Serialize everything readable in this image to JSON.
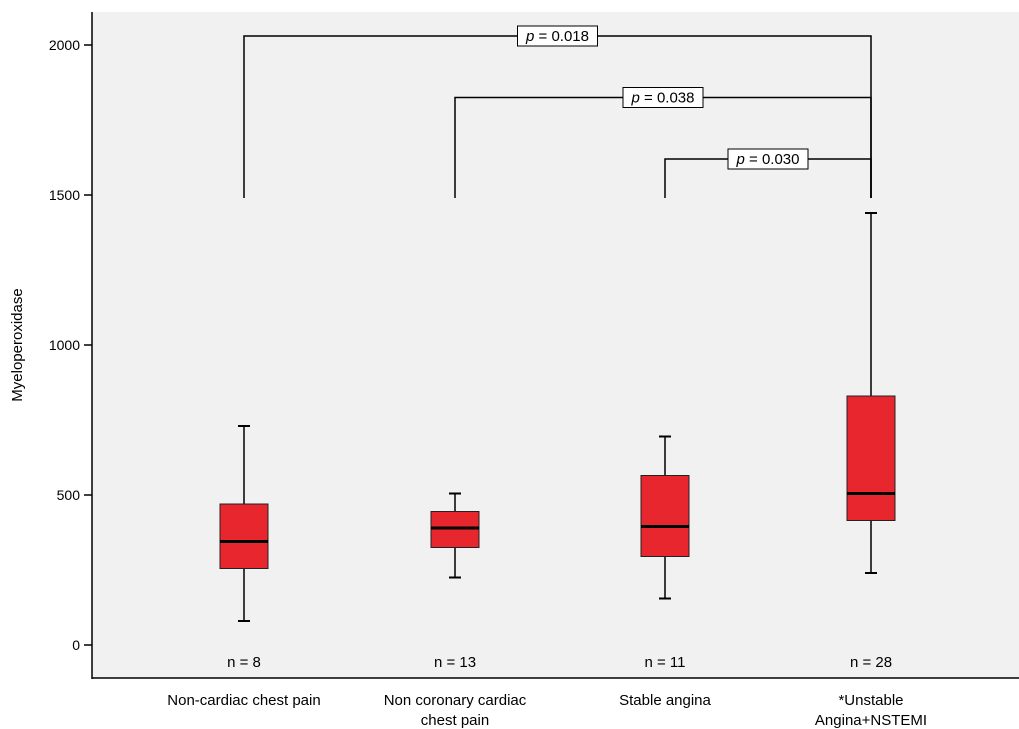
{
  "chart_data": {
    "type": "box",
    "title": "",
    "xlabel": "",
    "ylabel": "Myeloperoxidase",
    "ylim": [
      -20,
      2120
    ],
    "yticks": [
      0,
      500,
      1000,
      1500,
      2000
    ],
    "grid": false,
    "legend": "none",
    "box_color": "#e8262d",
    "categories": [
      {
        "label_lines": [
          "Non-cardiac chest pain"
        ],
        "n_label": "n = 8",
        "whisker_low": 80,
        "q1": 255,
        "median": 345,
        "q3": 470,
        "whisker_high": 730
      },
      {
        "label_lines": [
          "Non coronary cardiac",
          "chest pain"
        ],
        "n_label": "n = 13",
        "whisker_low": 225,
        "q1": 325,
        "median": 390,
        "q3": 445,
        "whisker_high": 505
      },
      {
        "label_lines": [
          "Stable angina"
        ],
        "n_label": "n = 11",
        "whisker_low": 155,
        "q1": 295,
        "median": 395,
        "q3": 565,
        "whisker_high": 695
      },
      {
        "label_lines": [
          "*Unstable",
          "Angina+NSTEMI"
        ],
        "n_label": "n = 28",
        "whisker_low": 240,
        "q1": 415,
        "median": 505,
        "q3": 830,
        "whisker_high": 1440
      }
    ],
    "comparisons": [
      {
        "from": 0,
        "to": 3,
        "bracket_y": 2030,
        "leg_bottom": 1490,
        "right_leg_bottom": 1490,
        "p_symbol": "p",
        "p_value": " = 0.018"
      },
      {
        "from": 1,
        "to": 3,
        "bracket_y": 1825,
        "leg_bottom": 1490,
        "right_leg_bottom": 1490,
        "p_symbol": "p",
        "p_value": " = 0.038"
      },
      {
        "from": 2,
        "to": 3,
        "bracket_y": 1620,
        "leg_bottom": 1490,
        "right_leg_bottom": 1490,
        "p_symbol": "p",
        "p_value": " = 0.030"
      }
    ]
  }
}
